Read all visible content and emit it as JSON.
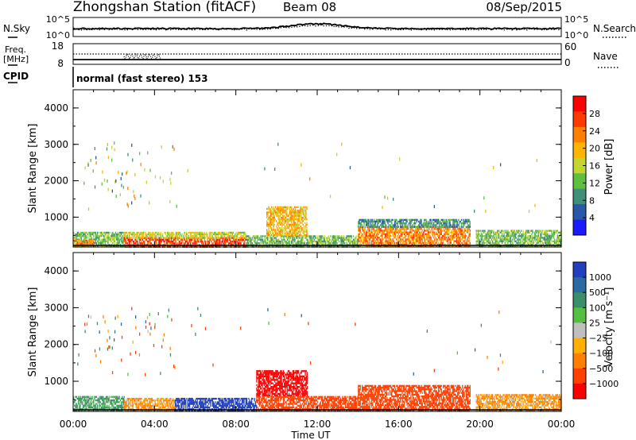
{
  "header": {
    "station": "Zhongshan Station (fitACF)",
    "beam": "Beam 08",
    "date": "08/Sep/2015"
  },
  "top_panels": {
    "nsky_label": "N.Sky",
    "nsearch_label": "N.Search",
    "freq_label_1": "Freq.",
    "freq_label_2": "[MHz]",
    "nave_label": "Nave",
    "cpid_label": "CPID",
    "cpid_text": "normal (fast stereo) 153",
    "left_ticks_noise": [
      "10^5",
      "10^0"
    ],
    "right_ticks_noise": [
      "10^5",
      "10^0"
    ],
    "left_ticks_freq": [
      "18",
      "8"
    ],
    "right_ticks_freq": [
      "60",
      "0"
    ]
  },
  "axes": {
    "ylabel": "Slant Range [km]",
    "xlabel": "Time UT",
    "yticks": [
      "4000",
      "3000",
      "2000",
      "1000"
    ],
    "xticks": [
      "00:00",
      "04:00",
      "08:00",
      "12:00",
      "16:00",
      "20:00",
      "00:00"
    ]
  },
  "colors": {
    "power": [
      "#1a1aff",
      "#2a58a8",
      "#3f8f7a",
      "#5fbf3f",
      "#c4d430",
      "#ffb400",
      "#ff8000",
      "#ff3a00",
      "#ff0000"
    ],
    "velocity": [
      "#2040c0",
      "#2a6aa0",
      "#3a8f6a",
      "#55c040",
      "#bfbfbf",
      "#ffb000",
      "#ff8000",
      "#ff4000",
      "#ff0000"
    ]
  },
  "power_colorbar": {
    "label": "Power [dB]",
    "ticks": [
      "28",
      "24",
      "20",
      "16",
      "12",
      "8",
      "4"
    ]
  },
  "velocity_colorbar": {
    "label": "Velocity [m s⁻¹]",
    "ticks": [
      "1000",
      "500",
      "100",
      "25",
      "−25",
      "−100",
      "−500",
      "−1000"
    ]
  },
  "chart_data": [
    {
      "type": "heatmap",
      "title": "Power",
      "xlabel": "Time UT",
      "ylabel": "Slant Range [km]",
      "xlim": [
        0,
        24
      ],
      "ylim": [
        180,
        4500
      ],
      "colorbar": "Power [dB]",
      "regions": [
        {
          "t": [
            0.0,
            2.5
          ],
          "r": [
            200,
            600
          ],
          "value": 12
        },
        {
          "t": [
            0.0,
            1.0
          ],
          "r": [
            200,
            380
          ],
          "value": 24
        },
        {
          "t": [
            2.5,
            8.5
          ],
          "r": [
            200,
            450
          ],
          "value": 28
        },
        {
          "t": [
            2.5,
            8.5
          ],
          "r": [
            450,
            600
          ],
          "value": 16
        },
        {
          "t": [
            8.5,
            14.0
          ],
          "r": [
            200,
            500
          ],
          "value": 12
        },
        {
          "t": [
            9.5,
            11.5
          ],
          "r": [
            500,
            1300
          ],
          "value": 20
        },
        {
          "t": [
            14.0,
            19.5
          ],
          "r": [
            200,
            750
          ],
          "value": 24
        },
        {
          "t": [
            14.0,
            19.5
          ],
          "r": [
            750,
            950
          ],
          "value": 8
        },
        {
          "t": [
            19.8,
            24.0
          ],
          "r": [
            200,
            650
          ],
          "value": 12
        }
      ]
    },
    {
      "type": "heatmap",
      "title": "Velocity",
      "xlabel": "Time UT",
      "ylabel": "Slant Range [km]",
      "xlim": [
        0,
        24
      ],
      "ylim": [
        180,
        4500
      ],
      "colorbar": "Velocity [m s⁻¹]",
      "regions": [
        {
          "t": [
            0.0,
            2.5
          ],
          "r": [
            200,
            600
          ],
          "value": 100
        },
        {
          "t": [
            2.5,
            5.0
          ],
          "r": [
            200,
            550
          ],
          "value": -100
        },
        {
          "t": [
            5.0,
            9.0
          ],
          "r": [
            200,
            550
          ],
          "value": 1000
        },
        {
          "t": [
            9.0,
            11.5
          ],
          "r": [
            600,
            1300
          ],
          "value": -1000
        },
        {
          "t": [
            9.0,
            14.0
          ],
          "r": [
            200,
            600
          ],
          "value": -500
        },
        {
          "t": [
            14.0,
            19.5
          ],
          "r": [
            200,
            900
          ],
          "value": -500
        },
        {
          "t": [
            19.8,
            24.0
          ],
          "r": [
            200,
            650
          ],
          "value": -100
        }
      ]
    }
  ]
}
